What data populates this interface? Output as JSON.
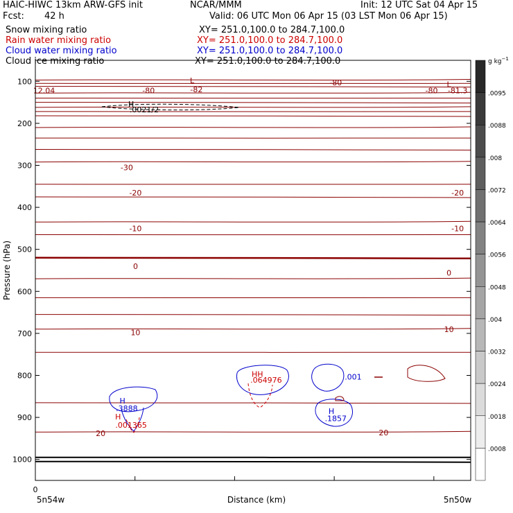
{
  "header": {
    "title_left": "HAIC-HIWC 13km ARW-GFS init",
    "org": "NCAR/MMM",
    "init": "Init: 12 UTC Sat 04 Apr 15",
    "fcst_label": "Fcst:",
    "fcst_value": "42 h",
    "valid": "Valid: 06 UTC Mon 06 Apr 15 (03 LST Mon 06 Apr 15)"
  },
  "fields": [
    {
      "label": "Snow mixing ratio",
      "xy": "XY= 251.0,100.0 to 284.7,100.0",
      "color": "#000000"
    },
    {
      "label": "Rain water mixing ratio",
      "xy": "XY= 251.0,100.0 to 284.7,100.0",
      "color": "#cc0000"
    },
    {
      "label": "Cloud water mixing ratio",
      "xy": "XY= 251.0,100.0 to 284.7,100.0",
      "color": "#0000cc"
    },
    {
      "label": "Cloud ice mixing ratio",
      "xy": "XY= 251.0,100.0 to 284.7,100.0",
      "color": "#000000"
    }
  ],
  "chart_data": {
    "type": "contour-cross-section",
    "ylabel": "Pressure (hPa)",
    "xlabel": "Distance (km)",
    "x_tick_zero": "0",
    "x_left_label": "5n54w",
    "x_right_label": "5n50w",
    "ylim": [
      1050,
      50
    ],
    "yticks": [
      100,
      200,
      300,
      400,
      500,
      600,
      700,
      800,
      900,
      1000
    ],
    "colorbar": {
      "unit": "g kg",
      "unit_exp": "−1",
      "ticks": [
        ".0095",
        ".0088",
        ".008",
        ".0072",
        ".0064",
        ".0056",
        ".0048",
        ".004",
        ".0032",
        ".0024",
        ".0018",
        ".0008"
      ]
    },
    "temperature_labels": [
      {
        "text": "-82",
        "x": 0.37,
        "p": 119
      },
      {
        "text": "-80",
        "x": 0.26,
        "p": 122
      },
      {
        "text": "-80",
        "x": 0.69,
        "p": 103
      },
      {
        "text": "-80",
        "x": 0.91,
        "p": 122
      },
      {
        "text": "-81.3",
        "x": 0.97,
        "p": 122
      },
      {
        "text": "12.04",
        "x": 0.02,
        "p": 122
      },
      {
        "text": "-30",
        "x": 0.21,
        "p": 305
      },
      {
        "text": "-20",
        "x": 0.23,
        "p": 365
      },
      {
        "text": "-20",
        "x": 0.97,
        "p": 365
      },
      {
        "text": "-10",
        "x": 0.23,
        "p": 450
      },
      {
        "text": "-10",
        "x": 0.97,
        "p": 450
      },
      {
        "text": "0",
        "x": 0.23,
        "p": 540
      },
      {
        "text": "0",
        "x": 0.95,
        "p": 556
      },
      {
        "text": "10",
        "x": 0.23,
        "p": 698
      },
      {
        "text": "10",
        "x": 0.95,
        "p": 690
      },
      {
        "text": "20",
        "x": 0.15,
        "p": 938
      },
      {
        "text": "20",
        "x": 0.8,
        "p": 936
      }
    ],
    "extrema_labels": [
      {
        "text": "L",
        "x": 0.36,
        "p": 98,
        "color": "#8b0000"
      },
      {
        "text": "L",
        "x": 0.95,
        "p": 107,
        "color": "#8b0000"
      },
      {
        "text": "H",
        "x": 0.22,
        "p": 154,
        "color": "#000000"
      },
      {
        "text": ".0021/2",
        "x": 0.25,
        "p": 167,
        "color": "#000000"
      },
      {
        "text": "H",
        "x": 0.2,
        "p": 860,
        "color": "#0000cc"
      },
      {
        "text": ".3888",
        "x": 0.21,
        "p": 878,
        "color": "#0000cc"
      },
      {
        "text": "H",
        "x": 0.19,
        "p": 898,
        "color": "#cc0000"
      },
      {
        "text": ".001365",
        "x": 0.22,
        "p": 918,
        "color": "#cc0000"
      },
      {
        "text": "HH",
        "x": 0.51,
        "p": 797,
        "color": "#cc0000"
      },
      {
        "text": ".064976",
        "x": 0.53,
        "p": 811,
        "color": "#cc0000"
      },
      {
        "text": ".001",
        "x": 0.73,
        "p": 803,
        "color": "#0000cc"
      },
      {
        "text": "H",
        "x": 0.68,
        "p": 885,
        "color": "#0000cc"
      },
      {
        "text": ".1857",
        "x": 0.69,
        "p": 902,
        "color": "#0000cc"
      }
    ],
    "isotherm_pressures": [
      97,
      105,
      112,
      128,
      140,
      150,
      162,
      172,
      182,
      210,
      235,
      262,
      292,
      345,
      375,
      435,
      465,
      520,
      570,
      615,
      655,
      690,
      745,
      865,
      935,
      995,
      1005
    ]
  }
}
